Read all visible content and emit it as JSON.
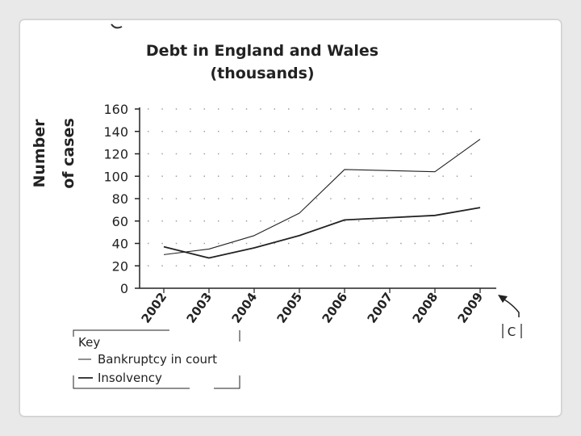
{
  "chart_data": {
    "type": "line",
    "title_line1": "Debt in England and Wales",
    "title_line2": "(thousands)",
    "ylabel_line1": "Number",
    "ylabel_line2": "of cases",
    "x": [
      "2002",
      "2003",
      "2004",
      "2005",
      "2006",
      "2007",
      "2008",
      "2009"
    ],
    "ylim": [
      0,
      160
    ],
    "yticks": [
      0,
      20,
      40,
      60,
      80,
      100,
      120,
      140,
      160
    ],
    "series": [
      {
        "name": "Bankruptcy in court",
        "values": [
          30,
          35,
          47,
          67,
          106,
          105,
          104,
          133
        ]
      },
      {
        "name": "Insolvency",
        "values": [
          37,
          27,
          36,
          47,
          61,
          63,
          65,
          72
        ]
      }
    ],
    "legend_title": "Key",
    "legend_position": "bottom-left",
    "annotation": "C",
    "grid": "dotted"
  },
  "colors": {
    "line": "#222222",
    "grid": "#9a9a9a",
    "background": "#e9e9e9",
    "card": "#ffffff"
  }
}
